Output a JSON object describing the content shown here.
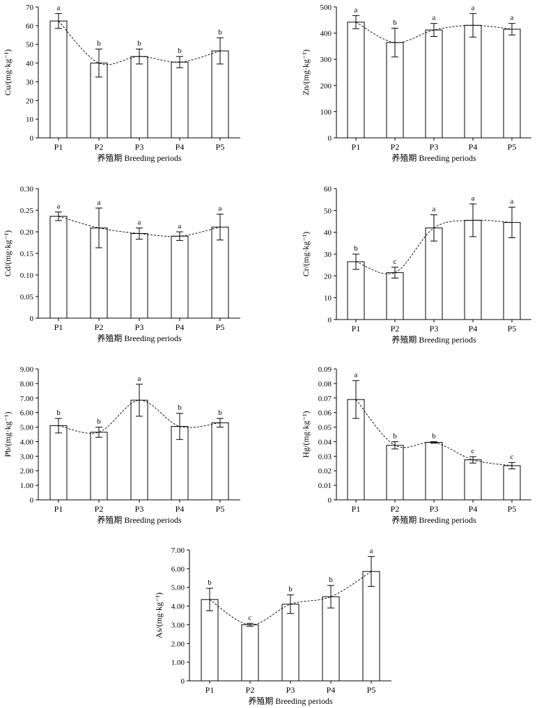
{
  "chart_data": [
    {
      "type": "bar",
      "categories": [
        "P1",
        "P2",
        "P3",
        "P4",
        "P5"
      ],
      "values": [
        62.5,
        40.0,
        43.5,
        40.5,
        46.5
      ],
      "errors": [
        4.0,
        7.5,
        4.0,
        3.0,
        7.0
      ],
      "sig": [
        "a",
        "b",
        "b",
        "b",
        "b"
      ],
      "trend": true,
      "ylabel": "Cu/(mg·kg⁻¹)",
      "xlabel": "养殖期 Breeding periods",
      "ylim": [
        0,
        70
      ],
      "yticks": [
        "0",
        "10",
        "20",
        "30",
        "40",
        "50",
        "60",
        "70"
      ]
    },
    {
      "type": "bar",
      "categories": [
        "P1",
        "P2",
        "P3",
        "P4",
        "P5"
      ],
      "values": [
        442,
        364,
        412,
        430,
        415
      ],
      "errors": [
        25,
        55,
        25,
        45,
        22
      ],
      "sig": [
        "a",
        "b",
        "a",
        "a",
        "a"
      ],
      "trend": true,
      "ylabel": "Zn/(mg·kg⁻¹)",
      "xlabel": "养殖期 Breeding periods",
      "ylim": [
        0,
        500
      ],
      "yticks": [
        "0",
        "100",
        "200",
        "300",
        "400",
        "500"
      ]
    },
    {
      "type": "bar",
      "categories": [
        "P1",
        "P2",
        "P3",
        "P4",
        "P5"
      ],
      "values": [
        0.236,
        0.209,
        0.196,
        0.19,
        0.211
      ],
      "errors": [
        0.01,
        0.046,
        0.013,
        0.01,
        0.03
      ],
      "sig": [
        "a",
        "a",
        "a",
        "a",
        "a"
      ],
      "trend": true,
      "ylabel": "Cd/(mg·kg⁻¹)",
      "xlabel": "养殖期 Breeding periods",
      "ylim": [
        0,
        0.3
      ],
      "yticks": [
        "0",
        "0.05",
        "0.10",
        "0.15",
        "0.20",
        "0.25",
        "0.30"
      ]
    },
    {
      "type": "bar",
      "categories": [
        "P1",
        "P2",
        "P3",
        "P4",
        "P5"
      ],
      "values": [
        26.5,
        21.5,
        42.0,
        45.5,
        44.5
      ],
      "errors": [
        3.5,
        2.5,
        6.0,
        7.5,
        7.0
      ],
      "sig": [
        "b",
        "c",
        "a",
        "a",
        "a"
      ],
      "trend": true,
      "ylabel": "Cr/(mg·kg⁻¹)",
      "xlabel": "养殖期 Breeding periods",
      "ylim": [
        0,
        60
      ],
      "yticks": [
        "0",
        "10",
        "20",
        "30",
        "40",
        "50",
        "60"
      ]
    },
    {
      "type": "bar",
      "categories": [
        "P1",
        "P2",
        "P3",
        "P4",
        "P5"
      ],
      "values": [
        5.1,
        4.65,
        6.85,
        5.05,
        5.3
      ],
      "errors": [
        0.5,
        0.35,
        1.1,
        0.9,
        0.3
      ],
      "sig": [
        "b",
        "b",
        "a",
        "b",
        "b"
      ],
      "trend": true,
      "ylabel": "Pb/(mg·kg⁻¹)",
      "xlabel": "养殖期 Breeding periods",
      "ylim": [
        0,
        9
      ],
      "yticks": [
        "0",
        "1.00",
        "2.00",
        "3.00",
        "4.00",
        "5.00",
        "6.00",
        "7.00",
        "8.00",
        "9.00"
      ]
    },
    {
      "type": "bar",
      "categories": [
        "P1",
        "P2",
        "P3",
        "P4",
        "P5"
      ],
      "values": [
        0.069,
        0.0375,
        0.0395,
        0.0275,
        0.0235
      ],
      "errors": [
        0.013,
        0.0025,
        0.0005,
        0.0022,
        0.0022
      ],
      "sig": [
        "a",
        "b",
        "b",
        "c",
        "c"
      ],
      "trend": true,
      "ylabel": "Hg/(mg·kg⁻¹)",
      "xlabel": "养殖期 Breeding periods",
      "ylim": [
        0,
        0.09
      ],
      "yticks": [
        "0",
        "0.01",
        "0.02",
        "0.03",
        "0.04",
        "0.05",
        "0.06",
        "0.07",
        "0.08",
        "0.09"
      ]
    },
    {
      "type": "bar",
      "categories": [
        "P1",
        "P2",
        "P3",
        "P4",
        "P5"
      ],
      "values": [
        4.35,
        3.0,
        4.1,
        4.5,
        5.85
      ],
      "errors": [
        0.6,
        0.08,
        0.5,
        0.6,
        0.8
      ],
      "sig": [
        "b",
        "c",
        "b",
        "b",
        "a"
      ],
      "trend": true,
      "ylabel": "As/(mg·kg⁻¹)",
      "xlabel": "养殖期 Breeding periods",
      "ylim": [
        0,
        7
      ],
      "yticks": [
        "0",
        "1.00",
        "2.00",
        "3.00",
        "4.00",
        "5.00",
        "6.00",
        "7.00"
      ]
    }
  ]
}
